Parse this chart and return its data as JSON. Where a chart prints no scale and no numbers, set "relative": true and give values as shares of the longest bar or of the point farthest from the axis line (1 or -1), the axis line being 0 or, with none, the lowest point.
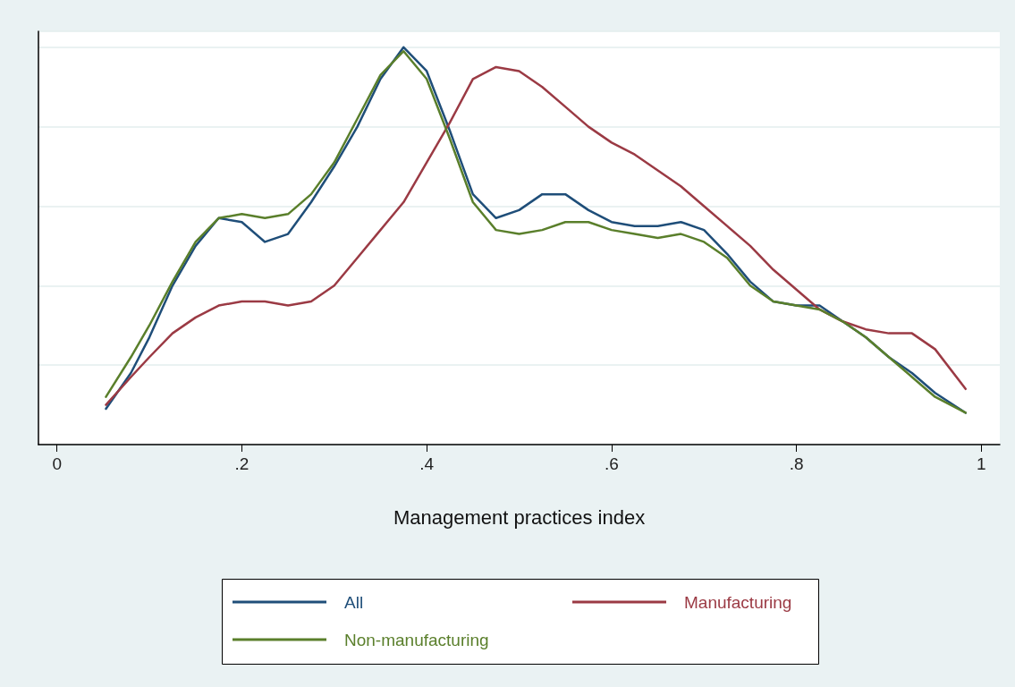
{
  "chart_data": {
    "type": "line",
    "relative": true,
    "xlabel": "Management practices index",
    "xlim": [
      -0.02,
      1.02
    ],
    "xticks": [
      0,
      {
        "value": 0.2,
        "label": ".2"
      },
      {
        "value": 0.4,
        "label": ".4"
      },
      {
        "value": 0.6,
        "label": ".6"
      },
      {
        "value": 0.8,
        "label": ".8"
      },
      1
    ],
    "x": [
      0.053,
      0.08,
      0.1,
      0.125,
      0.15,
      0.175,
      0.2,
      0.225,
      0.25,
      0.275,
      0.3,
      0.325,
      0.35,
      0.375,
      0.4,
      0.425,
      0.45,
      0.475,
      0.5,
      0.525,
      0.55,
      0.575,
      0.6,
      0.625,
      0.65,
      0.675,
      0.7,
      0.725,
      0.75,
      0.775,
      0.8,
      0.825,
      0.85,
      0.875,
      0.9,
      0.925,
      0.95,
      0.983
    ],
    "series": [
      {
        "name": "All",
        "color": "#1f4e79",
        "values": [
          0.09,
          0.18,
          0.27,
          0.4,
          0.5,
          0.57,
          0.56,
          0.51,
          0.53,
          0.61,
          0.7,
          0.8,
          0.92,
          1.0,
          0.94,
          0.79,
          0.63,
          0.57,
          0.59,
          0.63,
          0.63,
          0.59,
          0.56,
          0.55,
          0.55,
          0.56,
          0.54,
          0.48,
          0.41,
          0.36,
          0.35,
          0.35,
          0.31,
          0.27,
          0.22,
          0.18,
          0.13,
          0.08
        ]
      },
      {
        "name": "Manufacturing",
        "color": "#9b3a44",
        "values": [
          0.1,
          0.17,
          0.22,
          0.28,
          0.32,
          0.35,
          0.36,
          0.36,
          0.35,
          0.36,
          0.4,
          0.47,
          0.54,
          0.61,
          0.71,
          0.81,
          0.92,
          0.95,
          0.94,
          0.9,
          0.85,
          0.8,
          0.76,
          0.73,
          0.69,
          0.65,
          0.6,
          0.55,
          0.5,
          0.44,
          0.39,
          0.34,
          0.31,
          0.29,
          0.28,
          0.28,
          0.24,
          0.14
        ]
      },
      {
        "name": "Non-manufacturing",
        "color": "#5a7f2b",
        "values": [
          0.12,
          0.22,
          0.3,
          0.41,
          0.51,
          0.57,
          0.58,
          0.57,
          0.58,
          0.63,
          0.71,
          0.82,
          0.93,
          0.99,
          0.92,
          0.77,
          0.61,
          0.54,
          0.53,
          0.54,
          0.56,
          0.56,
          0.54,
          0.53,
          0.52,
          0.53,
          0.51,
          0.47,
          0.4,
          0.36,
          0.35,
          0.34,
          0.31,
          0.27,
          0.22,
          0.17,
          0.12,
          0.08
        ]
      }
    ],
    "grid": "y",
    "legend": "bottom",
    "marker": "none",
    "line_style": "solid"
  }
}
